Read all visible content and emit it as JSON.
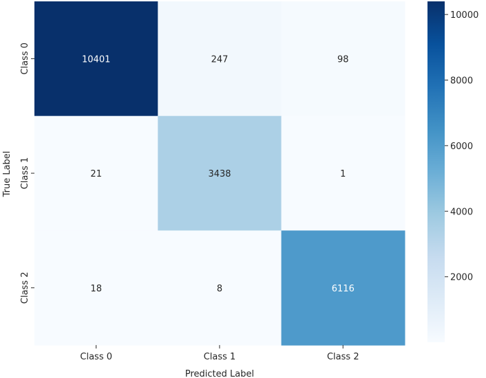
{
  "chart_data": {
    "type": "heatmap",
    "title": "",
    "xlabel": "Predicted Label",
    "ylabel": "True Label",
    "x_categories": [
      "Class 0",
      "Class 1",
      "Class 2"
    ],
    "y_categories": [
      "Class 0",
      "Class 1",
      "Class 2"
    ],
    "values": [
      [
        10401,
        247,
        98
      ],
      [
        21,
        3438,
        1
      ],
      [
        18,
        8,
        6116
      ]
    ],
    "colormap": "Blues",
    "colorbar": {
      "range": [
        1,
        10401
      ],
      "ticks": [
        2000,
        4000,
        6000,
        8000,
        10000
      ]
    },
    "colors": {
      "low": "#f7fbff",
      "high": "#08306b",
      "text_dark": "#262626",
      "text_light": "#ffffff"
    }
  }
}
